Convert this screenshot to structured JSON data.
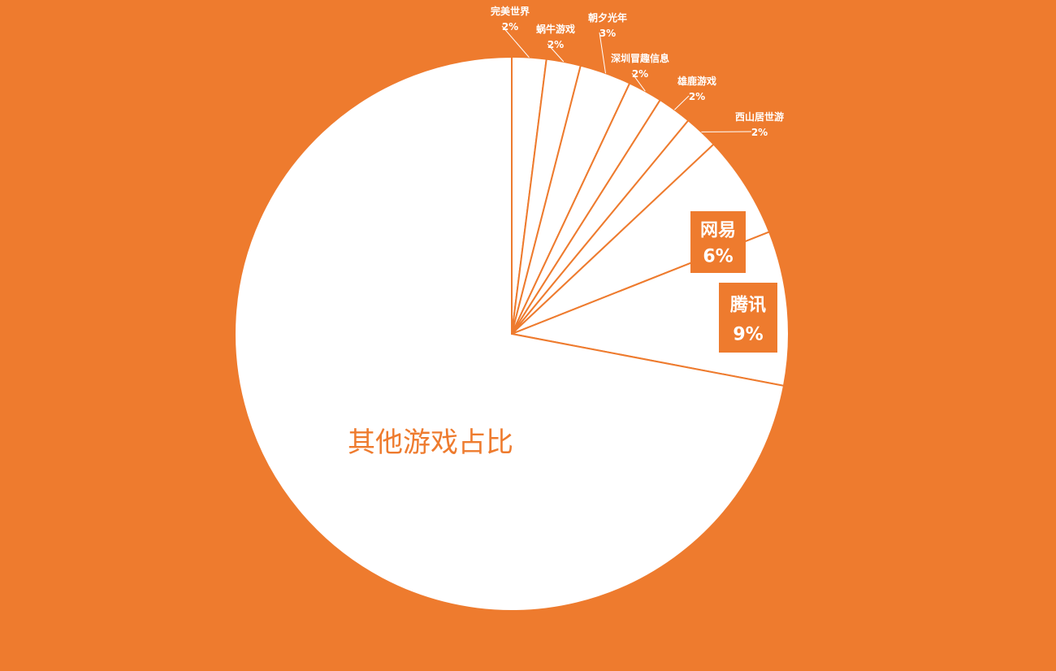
{
  "chart_data": {
    "type": "pie",
    "colors": {
      "background": "#ee7b2e",
      "slice_fill": "#ffffff",
      "stroke": "#ee7b2e",
      "label_box": "#ee7b2e"
    },
    "slices": [
      {
        "label": "完美世界",
        "percent_text": "2%",
        "value": 2,
        "style": "small"
      },
      {
        "label": "蜗牛游戏",
        "percent_text": "2%",
        "value": 2,
        "style": "small"
      },
      {
        "label": "朝夕光年",
        "percent_text": "3%",
        "value": 3,
        "style": "small"
      },
      {
        "label": "深圳冒趣信息",
        "percent_text": "2%",
        "value": 2,
        "style": "small"
      },
      {
        "label": "雄鹿游戏",
        "percent_text": "2%",
        "value": 2,
        "style": "small"
      },
      {
        "label": "西山居世游",
        "percent_text": "2%",
        "value": 2,
        "style": "small"
      },
      {
        "label": "网易",
        "percent_text": "6%",
        "value": 6,
        "style": "boxed"
      },
      {
        "label": "腾讯",
        "percent_text": "9%",
        "value": 9,
        "style": "boxed"
      },
      {
        "label": "其他游戏占比",
        "percent_text": "",
        "value": 72,
        "style": "large"
      }
    ]
  }
}
